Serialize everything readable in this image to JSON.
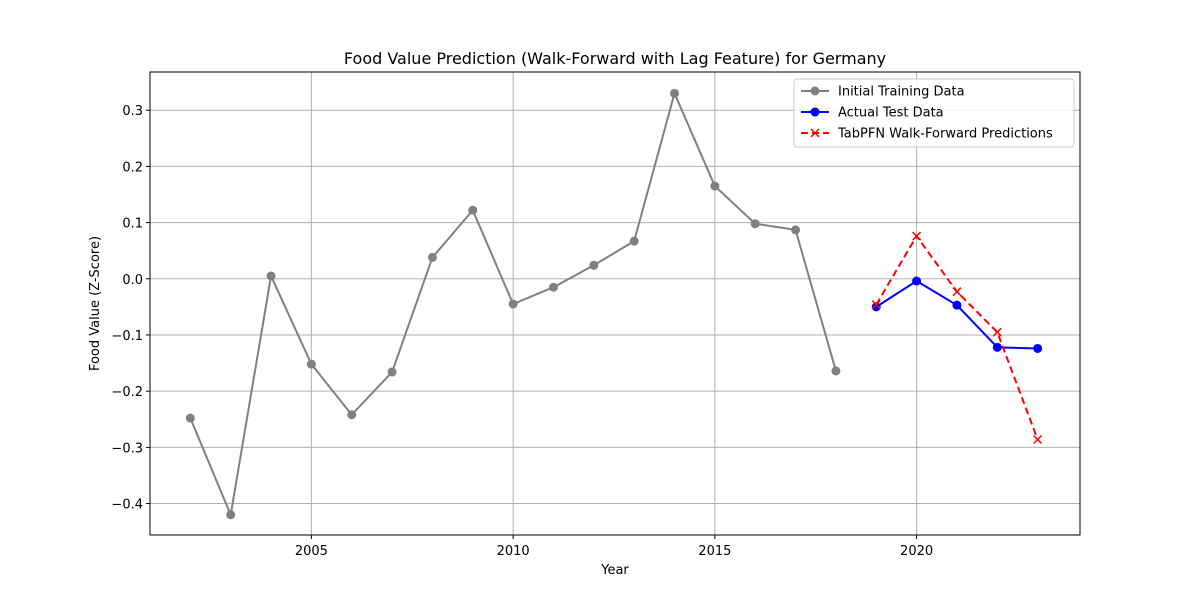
{
  "chart_data": {
    "type": "line",
    "title": "Food Value Prediction (Walk-Forward with Lag Feature) for Germany",
    "xlabel": "Year",
    "ylabel": "Food Value (Z-Score)",
    "xlim": [
      2001.0,
      2024.05
    ],
    "ylim": [
      -0.456,
      0.368
    ],
    "xticks": [
      2005,
      2010,
      2015,
      2020
    ],
    "yticks": [
      -0.4,
      -0.3,
      -0.2,
      -0.1,
      0.0,
      0.1,
      0.2,
      0.3
    ],
    "grid": true,
    "legend_position": "top-right",
    "series": [
      {
        "name": "Initial Training Data",
        "color": "#808080",
        "marker": "circle",
        "linestyle": "solid",
        "x": [
          2002,
          2003,
          2004,
          2005,
          2006,
          2007,
          2008,
          2009,
          2010,
          2011,
          2012,
          2013,
          2014,
          2015,
          2016,
          2017,
          2018
        ],
        "y": [
          -0.248,
          -0.42,
          0.005,
          -0.152,
          -0.242,
          -0.166,
          0.038,
          0.122,
          -0.045,
          -0.015,
          0.024,
          0.067,
          0.33,
          0.165,
          0.098,
          0.087,
          -0.164
        ]
      },
      {
        "name": "Actual Test Data",
        "color": "#0000ff",
        "marker": "circle",
        "linestyle": "solid",
        "x": [
          2019,
          2020,
          2021,
          2022,
          2023
        ],
        "y": [
          -0.05,
          -0.004,
          -0.047,
          -0.122,
          -0.124
        ]
      },
      {
        "name": "TabPFN Walk-Forward Predictions",
        "color": "#ff0000",
        "marker": "x",
        "linestyle": "dashed",
        "x": [
          2019,
          2020,
          2021,
          2022,
          2023
        ],
        "y": [
          -0.046,
          0.076,
          -0.023,
          -0.095,
          -0.286
        ]
      }
    ]
  }
}
